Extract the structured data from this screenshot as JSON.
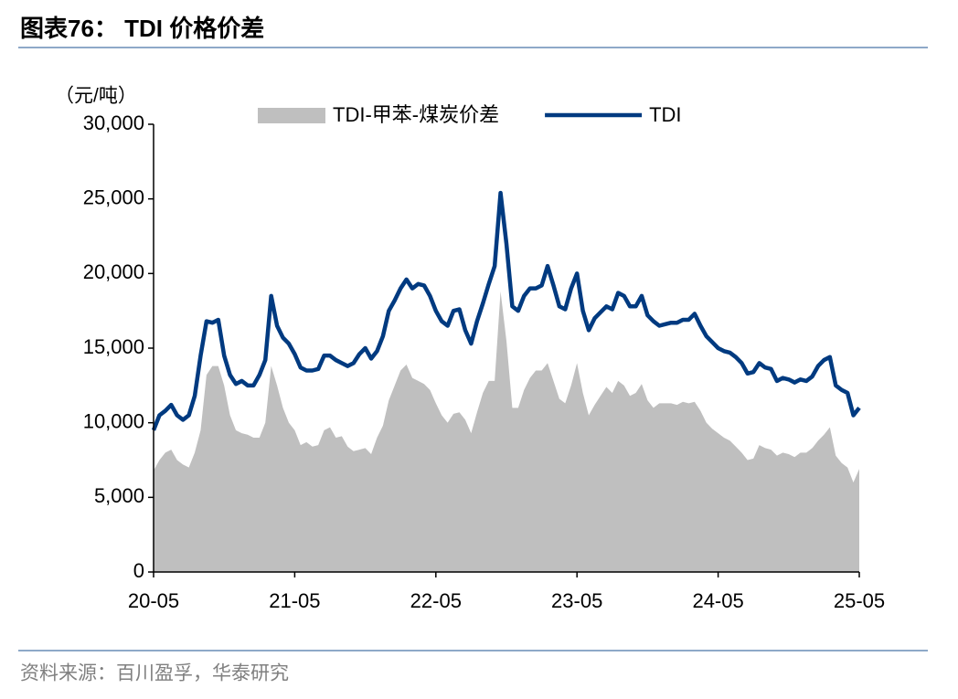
{
  "header": {
    "title": "图表76： TDI 价格价差"
  },
  "chart_data": {
    "type": "combo",
    "unit": "（元/吨）",
    "categories": [
      "20-05",
      null,
      null,
      null,
      null,
      null,
      null,
      null,
      null,
      null,
      null,
      null,
      null,
      null,
      null,
      null,
      null,
      null,
      null,
      null,
      null,
      null,
      null,
      null,
      "21-05",
      null,
      null,
      null,
      null,
      null,
      null,
      null,
      null,
      null,
      null,
      null,
      null,
      null,
      null,
      null,
      null,
      null,
      null,
      null,
      null,
      null,
      null,
      null,
      "22-05",
      null,
      null,
      null,
      null,
      null,
      null,
      null,
      null,
      null,
      null,
      null,
      null,
      null,
      null,
      null,
      null,
      null,
      null,
      null,
      null,
      null,
      null,
      null,
      "23-05",
      null,
      null,
      null,
      null,
      null,
      null,
      null,
      null,
      null,
      null,
      null,
      null,
      null,
      null,
      null,
      null,
      null,
      null,
      null,
      null,
      null,
      null,
      null,
      "24-05",
      null,
      null,
      null,
      null,
      null,
      null,
      null,
      null,
      null,
      null,
      null,
      null,
      null,
      null,
      null,
      null,
      null,
      null,
      null,
      null,
      null,
      null,
      null,
      "25-05"
    ],
    "series": [
      {
        "name": "TDI-甲苯-煤炭价差",
        "type": "area",
        "color": "#bfbfbf",
        "values": [
          6800,
          7500,
          8000,
          8200,
          7500,
          7200,
          7000,
          8000,
          9500,
          13200,
          13800,
          13800,
          12500,
          10500,
          9500,
          9300,
          9200,
          9000,
          9000,
          10000,
          13800,
          12500,
          11000,
          10000,
          9500,
          8500,
          8700,
          8400,
          8500,
          9500,
          9700,
          9000,
          9100,
          8400,
          8100,
          8200,
          8300,
          7900,
          9000,
          9800,
          11500,
          12500,
          13500,
          13900,
          13000,
          12800,
          12600,
          12200,
          11300,
          10500,
          10000,
          10600,
          10700,
          10200,
          9300,
          10700,
          12000,
          12800,
          12800,
          18800,
          15500,
          11000,
          11000,
          12200,
          13000,
          13500,
          13500,
          14000,
          12800,
          11600,
          11300,
          12500,
          14000,
          12000,
          10500,
          11200,
          11800,
          12400,
          12000,
          12800,
          12500,
          11800,
          12000,
          12600,
          11500,
          11000,
          11300,
          11300,
          11300,
          11200,
          11400,
          11300,
          11400,
          10800,
          10000,
          9600,
          9300,
          9000,
          8800,
          8400,
          8000,
          7500,
          7600,
          8500,
          8300,
          8200,
          7800,
          8000,
          7900,
          7700,
          8000,
          8000,
          8300,
          8800,
          9200,
          9700,
          7800,
          7300,
          7000,
          6000,
          6900
        ]
      },
      {
        "name": "TDI",
        "type": "line",
        "color": "#003a80",
        "values": [
          9500,
          10500,
          10800,
          11200,
          10500,
          10200,
          10500,
          11800,
          14500,
          16800,
          16700,
          16900,
          14500,
          13200,
          12600,
          12800,
          12500,
          12500,
          13200,
          14200,
          18500,
          16500,
          15700,
          15300,
          14600,
          13700,
          13500,
          13500,
          13600,
          14500,
          14500,
          14200,
          14000,
          13800,
          14000,
          14600,
          15000,
          14300,
          14800,
          15800,
          17500,
          18200,
          19000,
          19600,
          19000,
          19300,
          19200,
          18500,
          17500,
          16800,
          16500,
          17500,
          17600,
          16200,
          15300,
          16800,
          18000,
          19300,
          20500,
          25400,
          22000,
          17800,
          17500,
          18500,
          19000,
          19000,
          19200,
          20500,
          19200,
          17800,
          17600,
          19000,
          20000,
          17500,
          16200,
          17000,
          17400,
          17800,
          17600,
          18700,
          18500,
          17800,
          17800,
          18500,
          17200,
          16800,
          16500,
          16600,
          16700,
          16700,
          16900,
          16900,
          17300,
          16500,
          15800,
          15400,
          15000,
          14800,
          14700,
          14400,
          14000,
          13300,
          13400,
          14000,
          13700,
          13600,
          12800,
          13000,
          12900,
          12700,
          12900,
          12800,
          13100,
          13800,
          14200,
          14400,
          12500,
          12200,
          12000,
          10500,
          11000
        ]
      }
    ],
    "ylim": [
      0,
      30000
    ],
    "yticks": [
      0,
      {
        "value": 5000,
        "label": "5,000"
      },
      {
        "value": 10000,
        "label": "10,000"
      },
      {
        "value": 15000,
        "label": "15,000"
      },
      {
        "value": 20000,
        "label": "20,000"
      },
      {
        "value": 25000,
        "label": "25,000"
      },
      {
        "value": 30000,
        "label": "30,000"
      }
    ],
    "grid": false,
    "legend": "top"
  },
  "footer": {
    "source": "资料来源：百川盈孚，华泰研究"
  }
}
